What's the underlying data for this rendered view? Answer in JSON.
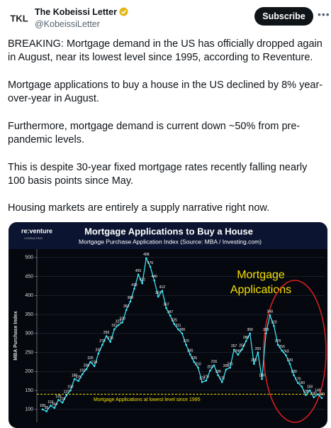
{
  "header": {
    "avatar": "TKL",
    "name": "The Kobeissi Letter",
    "handle": "@KobeissiLetter",
    "button": "Subscribe"
  },
  "body": {
    "paragraphs": [
      "BREAKING: Mortgage demand in the US has officially dropped again in August, near its lowest level since 1995, according to Reventure.",
      "Mortgage applications to buy a house in the US declined by 8% year-over-year in August.",
      "Furthermore, mortgage demand is current down ~50% from pre-pandemic levels.",
      "This is despite 30-year fixed mortgage rates recently falling nearly 100 basis points since May.",
      "Housing markets are entirely a supply narrative right now."
    ]
  },
  "chart_data": {
    "type": "line",
    "logo": {
      "name": "re:venture",
      "tagline": "CONSULTING"
    },
    "title": "Mortgage Applications to Buy a House",
    "subtitle": "Mortgage Purchase Application Index (Source: MBA / Investing.com)",
    "y_label": "MBA Purchase Index",
    "annotation": [
      "Mortgage",
      "Applications"
    ],
    "reference_line": {
      "value": 140,
      "label": "Mortgage Applications at lowest level since 1995",
      "color": "#f5e000"
    },
    "color": "#3ff0ff",
    "grid": true,
    "ylim": [
      66,
      522
    ],
    "yticks": [
      100,
      150,
      200,
      250,
      300,
      350,
      400,
      450,
      500
    ],
    "values": [
      100,
      95,
      110,
      104,
      125,
      118,
      137,
      150,
      180,
      175,
      193,
      206,
      225,
      214,
      247,
      270,
      293,
      278,
      311,
      322,
      329,
      362,
      384,
      418,
      455,
      432,
      498,
      476,
      440,
      397,
      412,
      367,
      347,
      325,
      311,
      300,
      270,
      245,
      225,
      210,
      172,
      176,
      202,
      216,
      190,
      172,
      205,
      210,
      257,
      244,
      258,
      280,
      300,
      220,
      250,
      180,
      300,
      348,
      320,
      270,
      255,
      243,
      220,
      190,
      170,
      160,
      138,
      150,
      132,
      140,
      130
    ]
  }
}
